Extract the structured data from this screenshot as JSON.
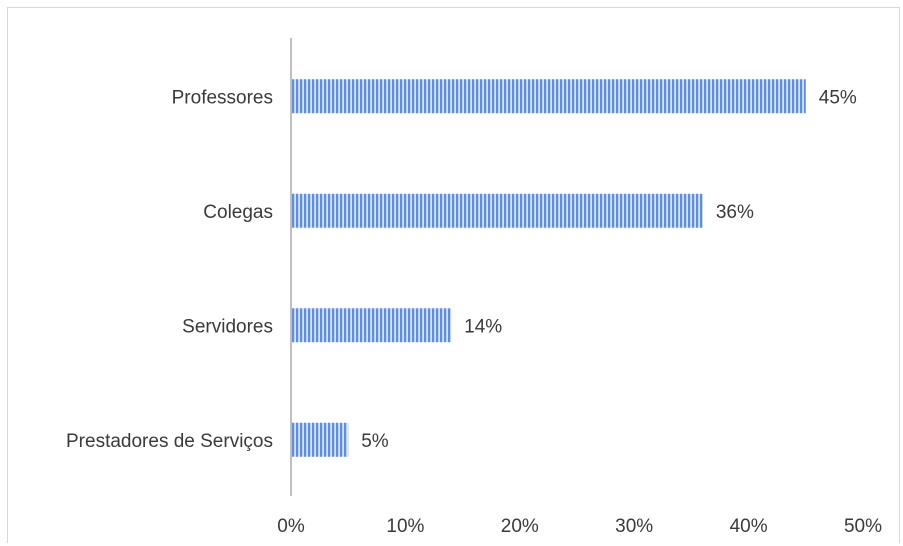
{
  "chart_data": {
    "type": "bar",
    "orientation": "horizontal",
    "categories": [
      "Professores",
      "Colegas",
      "Servidores",
      "Prestadores de Serviços"
    ],
    "values": [
      45,
      36,
      14,
      5
    ],
    "data_labels": [
      "45%",
      "36%",
      "14%",
      "5%"
    ],
    "xlim": [
      0,
      50
    ],
    "x_ticks": [
      0,
      10,
      20,
      30,
      40,
      50
    ],
    "x_tick_labels": [
      "0%",
      "10%",
      "20%",
      "30%",
      "40%",
      "50%"
    ],
    "grid": false,
    "legend": "none",
    "bar_color": "#5b8fe6",
    "bar_pattern": "vertical-stripes",
    "axis_color": "#bfbfbf"
  }
}
